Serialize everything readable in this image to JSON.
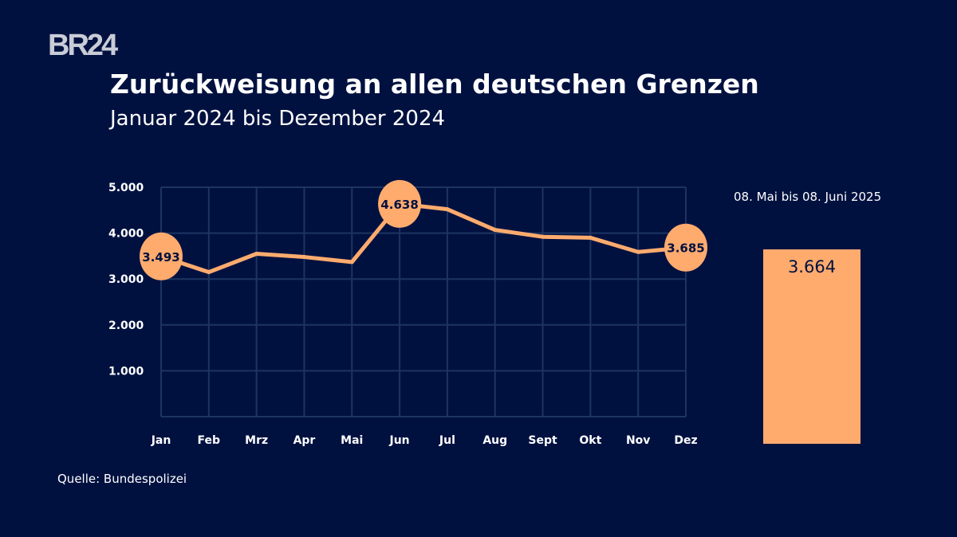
{
  "logo": "BR24",
  "chart_data": {
    "type": "line",
    "title": "Zurückweisung an allen deutschen Grenzen",
    "subtitle": "Januar 2024 bis Dezember 2024",
    "categories": [
      "Jan",
      "Feb",
      "Mrz",
      "Apr",
      "Mai",
      "Jun",
      "Jul",
      "Aug",
      "Sept",
      "Okt",
      "Nov",
      "Dez"
    ],
    "values": [
      3493,
      3150,
      3550,
      3480,
      3370,
      4638,
      4520,
      4070,
      3920,
      3900,
      3590,
      3685
    ],
    "labeled_points": [
      {
        "index": 0,
        "label": "3.493"
      },
      {
        "index": 5,
        "label": "4.638"
      },
      {
        "index": 11,
        "label": "3.685"
      }
    ],
    "yticks": [
      {
        "value": 1000,
        "label": "1.000"
      },
      {
        "value": 2000,
        "label": "2.000"
      },
      {
        "value": 3000,
        "label": "3.000"
      },
      {
        "value": 4000,
        "label": "4.000"
      },
      {
        "value": 5000,
        "label": "5.000"
      }
    ],
    "ylim": [
      0,
      5000
    ],
    "grid": true,
    "color": "#ffab6e",
    "comparison_bar": {
      "label": "08. Mai bis 08. Juni 2025",
      "value": 3664,
      "value_label": "3.664"
    }
  },
  "source": "Quelle: Bundespolizei"
}
